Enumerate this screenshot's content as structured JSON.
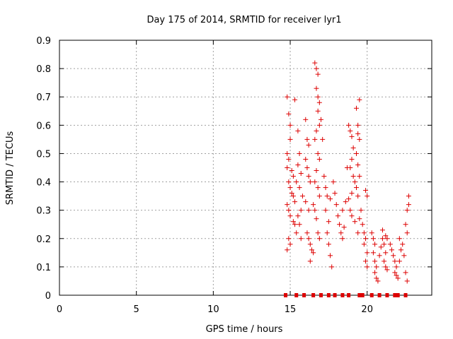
{
  "chart_data": {
    "type": "scatter",
    "title": "Day 175 of 2014, SRMTID for receiver lyr1",
    "xlabel": "GPS time / hours",
    "ylabel": "SRMTID / TECUs",
    "xlim": [
      0,
      24.2
    ],
    "ylim": [
      0,
      0.9
    ],
    "xticks": [
      0,
      5,
      10,
      15,
      20
    ],
    "yticks": [
      0,
      0.1,
      0.2,
      0.3,
      0.4,
      0.5,
      0.6,
      0.7,
      0.8,
      0.9
    ],
    "ytick_labels": [
      "0",
      "0.1",
      "0.2",
      "0.3",
      "0.4",
      "0.5",
      "0.6",
      "0.7",
      "0.8",
      "0.9"
    ],
    "grid": true,
    "marker": "+",
    "marker_color": "#dd0000",
    "series": [
      {
        "name": "SRMTID",
        "points": [
          [
            14.8,
            0.7
          ],
          [
            14.9,
            0.64
          ],
          [
            15.0,
            0.6
          ],
          [
            15.3,
            0.69
          ],
          [
            15.0,
            0.55
          ],
          [
            14.8,
            0.5
          ],
          [
            14.9,
            0.48
          ],
          [
            14.8,
            0.45
          ],
          [
            15.1,
            0.44
          ],
          [
            15.2,
            0.42
          ],
          [
            14.9,
            0.4
          ],
          [
            15.0,
            0.38
          ],
          [
            15.1,
            0.36
          ],
          [
            15.2,
            0.35
          ],
          [
            15.3,
            0.33
          ],
          [
            14.8,
            0.32
          ],
          [
            14.9,
            0.3
          ],
          [
            15.0,
            0.28
          ],
          [
            15.2,
            0.26
          ],
          [
            15.3,
            0.25
          ],
          [
            14.9,
            0.2
          ],
          [
            15.0,
            0.18
          ],
          [
            14.8,
            0.16
          ],
          [
            15.4,
            0.4
          ],
          [
            15.5,
            0.58
          ],
          [
            15.6,
            0.5
          ],
          [
            15.5,
            0.46
          ],
          [
            15.7,
            0.43
          ],
          [
            15.6,
            0.38
          ],
          [
            15.8,
            0.35
          ],
          [
            15.7,
            0.3
          ],
          [
            15.5,
            0.28
          ],
          [
            15.6,
            0.25
          ],
          [
            15.4,
            0.22
          ],
          [
            15.7,
            0.2
          ],
          [
            16.0,
            0.62
          ],
          [
            16.1,
            0.55
          ],
          [
            16.2,
            0.53
          ],
          [
            16.0,
            0.48
          ],
          [
            16.1,
            0.45
          ],
          [
            16.2,
            0.42
          ],
          [
            16.3,
            0.4
          ],
          [
            16.0,
            0.33
          ],
          [
            16.2,
            0.3
          ],
          [
            16.1,
            0.22
          ],
          [
            16.2,
            0.2
          ],
          [
            16.3,
            0.18
          ],
          [
            16.4,
            0.16
          ],
          [
            16.3,
            0.12
          ],
          [
            16.5,
            0.15
          ],
          [
            16.6,
            0.82
          ],
          [
            16.7,
            0.8
          ],
          [
            16.8,
            0.78
          ],
          [
            16.7,
            0.73
          ],
          [
            16.8,
            0.7
          ],
          [
            16.9,
            0.68
          ],
          [
            16.8,
            0.65
          ],
          [
            17.0,
            0.62
          ],
          [
            16.9,
            0.6
          ],
          [
            16.7,
            0.58
          ],
          [
            16.6,
            0.55
          ],
          [
            16.8,
            0.5
          ],
          [
            16.9,
            0.48
          ],
          [
            16.7,
            0.44
          ],
          [
            16.6,
            0.4
          ],
          [
            16.8,
            0.38
          ],
          [
            16.9,
            0.35
          ],
          [
            16.5,
            0.32
          ],
          [
            16.6,
            0.3
          ],
          [
            16.7,
            0.27
          ],
          [
            16.8,
            0.22
          ],
          [
            16.9,
            0.2
          ],
          [
            17.1,
            0.55
          ],
          [
            17.2,
            0.42
          ],
          [
            17.3,
            0.38
          ],
          [
            17.4,
            0.35
          ],
          [
            17.3,
            0.3
          ],
          [
            17.5,
            0.26
          ],
          [
            17.4,
            0.22
          ],
          [
            17.5,
            0.18
          ],
          [
            17.6,
            0.14
          ],
          [
            17.7,
            0.1
          ],
          [
            17.6,
            0.34
          ],
          [
            17.8,
            0.4
          ],
          [
            17.9,
            0.36
          ],
          [
            18.0,
            0.32
          ],
          [
            18.1,
            0.28
          ],
          [
            18.2,
            0.25
          ],
          [
            18.3,
            0.22
          ],
          [
            18.4,
            0.2
          ],
          [
            18.5,
            0.24
          ],
          [
            18.4,
            0.3
          ],
          [
            18.6,
            0.33
          ],
          [
            18.7,
            0.45
          ],
          [
            18.8,
            0.6
          ],
          [
            18.9,
            0.58
          ],
          [
            19.0,
            0.56
          ],
          [
            19.1,
            0.52
          ],
          [
            19.0,
            0.48
          ],
          [
            18.9,
            0.45
          ],
          [
            19.1,
            0.42
          ],
          [
            19.2,
            0.4
          ],
          [
            19.0,
            0.36
          ],
          [
            18.8,
            0.34
          ],
          [
            18.9,
            0.3
          ],
          [
            19.0,
            0.28
          ],
          [
            19.2,
            0.26
          ],
          [
            19.3,
            0.66
          ],
          [
            19.4,
            0.6
          ],
          [
            19.5,
            0.69
          ],
          [
            19.4,
            0.57
          ],
          [
            19.5,
            0.55
          ],
          [
            19.3,
            0.5
          ],
          [
            19.4,
            0.46
          ],
          [
            19.5,
            0.42
          ],
          [
            19.3,
            0.38
          ],
          [
            19.4,
            0.35
          ],
          [
            19.6,
            0.3
          ],
          [
            19.5,
            0.27
          ],
          [
            19.4,
            0.22
          ],
          [
            19.7,
            0.25
          ],
          [
            19.8,
            0.22
          ],
          [
            19.9,
            0.2
          ],
          [
            19.8,
            0.18
          ],
          [
            19.9,
            0.37
          ],
          [
            20.0,
            0.35
          ],
          [
            20.0,
            0.15
          ],
          [
            19.9,
            0.12
          ],
          [
            20.0,
            0.1
          ],
          [
            20.3,
            0.22
          ],
          [
            20.4,
            0.2
          ],
          [
            20.5,
            0.18
          ],
          [
            20.4,
            0.15
          ],
          [
            20.5,
            0.12
          ],
          [
            20.6,
            0.1
          ],
          [
            20.5,
            0.08
          ],
          [
            20.6,
            0.06
          ],
          [
            20.7,
            0.05
          ],
          [
            20.8,
            0.14
          ],
          [
            20.9,
            0.17
          ],
          [
            21.0,
            0.2
          ],
          [
            21.0,
            0.23
          ],
          [
            21.1,
            0.18
          ],
          [
            21.2,
            0.15
          ],
          [
            21.1,
            0.12
          ],
          [
            21.2,
            0.1
          ],
          [
            21.3,
            0.09
          ],
          [
            21.2,
            0.21
          ],
          [
            21.3,
            0.2
          ],
          [
            21.5,
            0.18
          ],
          [
            21.6,
            0.16
          ],
          [
            21.7,
            0.14
          ],
          [
            21.8,
            0.12
          ],
          [
            21.9,
            0.1
          ],
          [
            21.8,
            0.08
          ],
          [
            21.9,
            0.07
          ],
          [
            22.0,
            0.06
          ],
          [
            22.1,
            0.12
          ],
          [
            22.2,
            0.16
          ],
          [
            22.1,
            0.2
          ],
          [
            22.3,
            0.18
          ],
          [
            22.4,
            0.14
          ],
          [
            22.5,
            0.25
          ],
          [
            22.6,
            0.3
          ],
          [
            22.7,
            0.35
          ],
          [
            22.6,
            0.22
          ],
          [
            22.5,
            0.08
          ],
          [
            22.6,
            0.05
          ],
          [
            22.7,
            0.32
          ]
        ]
      }
    ],
    "zero_markers_x": [
      14.7,
      15.4,
      15.9,
      16.5,
      17.0,
      17.5,
      17.9,
      18.4,
      18.8,
      19.5,
      19.7,
      20.3,
      20.8,
      21.3,
      21.8,
      22.0,
      22.5
    ]
  }
}
